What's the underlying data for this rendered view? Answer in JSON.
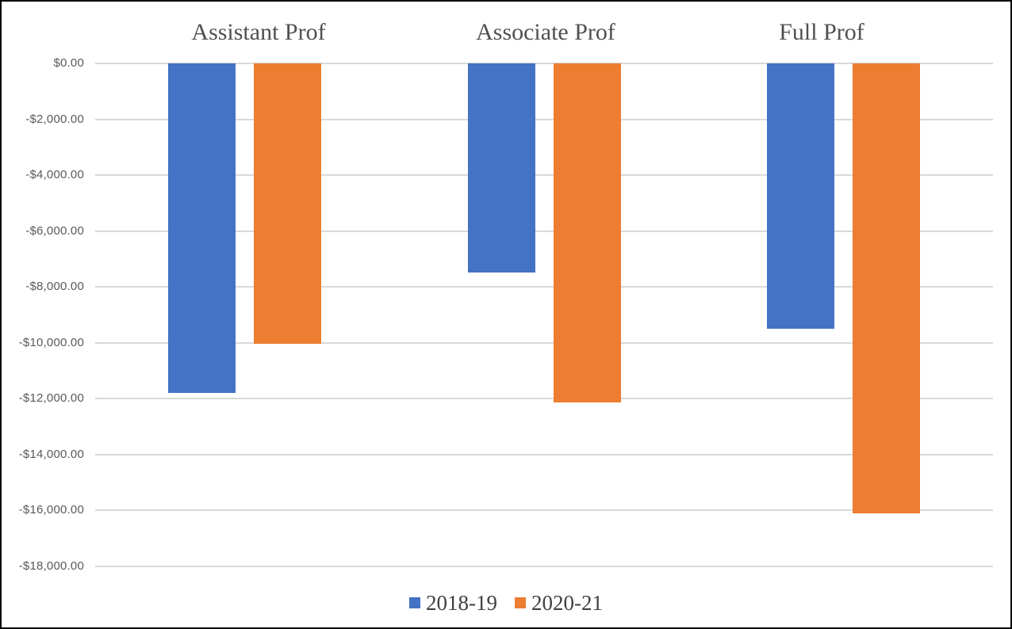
{
  "chart_data": {
    "type": "bar",
    "title": "",
    "categories": [
      "Assistant Prof",
      "Associate Prof",
      "Full Prof"
    ],
    "series": [
      {
        "name": "2018-19",
        "color": "#4472C4",
        "values": [
          -11800,
          -7500,
          -9500
        ]
      },
      {
        "name": "2020-21",
        "color": "#ED7D31",
        "values": [
          -10050,
          -12150,
          -16100
        ]
      }
    ],
    "y_axis": {
      "max": 0,
      "min": -18000,
      "step": 2000,
      "tick_labels": [
        "$0.00",
        "-$2,000.00",
        "-$4,000.00",
        "-$6,000.00",
        "-$8,000.00",
        "-$10,000.00",
        "-$12,000.00",
        "-$14,000.00",
        "-$16,000.00",
        "-$18,000.00"
      ],
      "number_format": "currency"
    },
    "x_axis": {
      "labels_position": "top"
    },
    "legend": {
      "position": "bottom",
      "entries": [
        "2018-19",
        "2020-21"
      ]
    },
    "grid": true,
    "colors": {
      "gridline": "#D9D9D9",
      "axis_label_text": "#595959",
      "category_label_text": "#505050",
      "legend_text": "#404040",
      "background": "#FFFFFF",
      "border": "#000000"
    }
  }
}
